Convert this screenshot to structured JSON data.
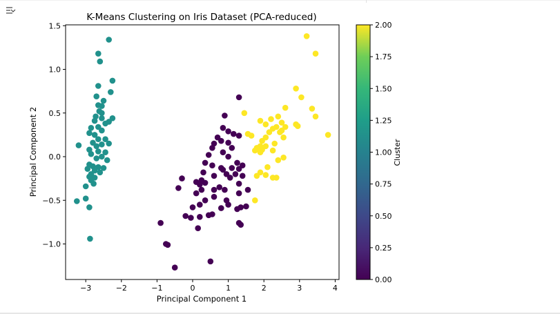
{
  "cell": {
    "output_icon": "output-collapse-icon"
  },
  "chart_data": {
    "type": "scatter",
    "title": "K-Means Clustering on Iris Dataset (PCA-reduced)",
    "xlabel": "Principal Component 1",
    "ylabel": "Principal Component 2",
    "xlim": [
      -3.45,
      4.1
    ],
    "ylim": [
      -1.4,
      1.5
    ],
    "x_ticks": [
      -3,
      -2,
      -1,
      0,
      1,
      2,
      3,
      4
    ],
    "x_tick_labels": [
      "−3",
      "−2",
      "−1",
      "0",
      "1",
      "2",
      "3",
      "4"
    ],
    "y_ticks": [
      -1.0,
      -0.5,
      0.0,
      0.5,
      1.0,
      1.5
    ],
    "y_tick_labels": [
      "−1.0",
      "−0.5",
      "0.0",
      "0.5",
      "1.0",
      "1.5"
    ],
    "grid": false,
    "colormap": "viridis",
    "colors": {
      "cluster_0": "#440154",
      "cluster_1": "#21918c",
      "cluster_2": "#fde725"
    },
    "colorbar": {
      "label": "Cluster",
      "range": [
        0.0,
        2.0
      ],
      "ticks": [
        0.0,
        0.25,
        0.5,
        0.75,
        1.0,
        1.25,
        1.5,
        1.75,
        2.0
      ],
      "tick_labels": [
        "0.00",
        "0.25",
        "0.50",
        "0.75",
        "1.00",
        "1.25",
        "1.50",
        "1.75",
        "2.00"
      ]
    },
    "series": [
      {
        "cluster": 1,
        "color": "#21918c",
        "points": [
          [
            -2.35,
            1.34
          ],
          [
            -2.65,
            1.18
          ],
          [
            -2.6,
            1.09
          ],
          [
            -2.25,
            0.87
          ],
          [
            -2.65,
            0.81
          ],
          [
            -2.3,
            0.74
          ],
          [
            -2.7,
            0.69
          ],
          [
            -2.5,
            0.64
          ],
          [
            -2.65,
            0.59
          ],
          [
            -2.55,
            0.58
          ],
          [
            -2.62,
            0.52
          ],
          [
            -2.55,
            0.5
          ],
          [
            -2.72,
            0.46
          ],
          [
            -2.55,
            0.44
          ],
          [
            -2.25,
            0.44
          ],
          [
            -2.75,
            0.41
          ],
          [
            -2.35,
            0.4
          ],
          [
            -2.45,
            0.38
          ],
          [
            -2.85,
            0.33
          ],
          [
            -2.65,
            0.34
          ],
          [
            -2.55,
            0.3
          ],
          [
            -2.9,
            0.27
          ],
          [
            -2.75,
            0.25
          ],
          [
            -2.65,
            0.2
          ],
          [
            -2.45,
            0.2
          ],
          [
            -2.8,
            0.16
          ],
          [
            -2.55,
            0.14
          ],
          [
            -2.35,
            0.15
          ],
          [
            -2.7,
            0.12
          ],
          [
            -3.2,
            0.13
          ],
          [
            -2.9,
            0.08
          ],
          [
            -2.65,
            0.06
          ],
          [
            -2.45,
            0.05
          ],
          [
            -2.85,
            0.03
          ],
          [
            -2.55,
            0.0
          ],
          [
            -2.7,
            -0.02
          ],
          [
            -2.4,
            -0.04
          ],
          [
            -2.9,
            -0.09
          ],
          [
            -2.8,
            -0.11
          ],
          [
            -2.65,
            -0.12
          ],
          [
            -2.5,
            -0.13
          ],
          [
            -2.95,
            -0.14
          ],
          [
            -2.75,
            -0.16
          ],
          [
            -2.6,
            -0.18
          ],
          [
            -2.85,
            -0.2
          ],
          [
            -2.9,
            -0.23
          ],
          [
            -2.75,
            -0.24
          ],
          [
            -2.85,
            -0.27
          ],
          [
            -2.78,
            -0.31
          ],
          [
            -3.0,
            -0.34
          ],
          [
            -3.0,
            -0.48
          ],
          [
            -3.25,
            -0.51
          ],
          [
            -2.9,
            -0.58
          ],
          [
            -2.88,
            -0.94
          ]
        ]
      },
      {
        "cluster": 0,
        "color": "#440154",
        "points": [
          [
            1.3,
            0.68
          ],
          [
            0.9,
            0.47
          ],
          [
            0.85,
            0.33
          ],
          [
            1.0,
            0.29
          ],
          [
            1.15,
            0.26
          ],
          [
            0.7,
            0.22
          ],
          [
            1.3,
            0.24
          ],
          [
            0.8,
            0.18
          ],
          [
            1.0,
            0.16
          ],
          [
            0.6,
            0.15
          ],
          [
            0.55,
            0.1
          ],
          [
            1.1,
            0.1
          ],
          [
            0.85,
            0.05
          ],
          [
            0.45,
            0.02
          ],
          [
            1.0,
            0.0
          ],
          [
            0.35,
            -0.07
          ],
          [
            1.25,
            -0.07
          ],
          [
            0.55,
            -0.1
          ],
          [
            1.4,
            -0.1
          ],
          [
            0.8,
            -0.13
          ],
          [
            1.1,
            -0.13
          ],
          [
            1.3,
            -0.14
          ],
          [
            0.85,
            -0.15
          ],
          [
            0.3,
            -0.18
          ],
          [
            0.95,
            -0.2
          ],
          [
            1.2,
            -0.2
          ],
          [
            0.6,
            -0.22
          ],
          [
            1.4,
            -0.22
          ],
          [
            1.05,
            -0.24
          ],
          [
            -0.3,
            -0.25
          ],
          [
            0.25,
            -0.27
          ],
          [
            0.1,
            -0.29
          ],
          [
            0.35,
            -0.3
          ],
          [
            1.3,
            -0.31
          ],
          [
            0.2,
            -0.32
          ],
          [
            0.75,
            -0.35
          ],
          [
            -0.4,
            -0.36
          ],
          [
            0.25,
            -0.38
          ],
          [
            0.9,
            -0.38
          ],
          [
            0.6,
            -0.38
          ],
          [
            1.55,
            -0.38
          ],
          [
            0.1,
            -0.42
          ],
          [
            1.3,
            -0.42
          ],
          [
            0.6,
            -0.46
          ],
          [
            0.95,
            -0.5
          ],
          [
            0.35,
            -0.5
          ],
          [
            1.0,
            -0.55
          ],
          [
            0.2,
            -0.55
          ],
          [
            1.5,
            -0.57
          ],
          [
            1.35,
            -0.58
          ],
          [
            0.0,
            -0.58
          ],
          [
            1.25,
            -0.6
          ],
          [
            0.8,
            -0.59
          ],
          [
            -0.2,
            -0.68
          ],
          [
            -0.05,
            -0.7
          ],
          [
            0.2,
            -0.69
          ],
          [
            0.45,
            -0.67
          ],
          [
            0.55,
            -0.66
          ],
          [
            1.3,
            -0.76
          ],
          [
            1.35,
            -0.78
          ],
          [
            -0.9,
            -0.76
          ],
          [
            0.15,
            -0.82
          ],
          [
            -0.75,
            -1.0
          ],
          [
            -0.7,
            -1.01
          ],
          [
            0.5,
            -1.2
          ],
          [
            -0.5,
            -1.27
          ]
        ]
      },
      {
        "cluster": 2,
        "color": "#fde725",
        "points": [
          [
            3.2,
            1.38
          ],
          [
            3.45,
            1.18
          ],
          [
            2.9,
            0.78
          ],
          [
            3.05,
            0.68
          ],
          [
            2.6,
            0.56
          ],
          [
            3.35,
            0.55
          ],
          [
            1.45,
            0.5
          ],
          [
            2.4,
            0.46
          ],
          [
            3.45,
            0.46
          ],
          [
            2.2,
            0.43
          ],
          [
            1.9,
            0.41
          ],
          [
            2.5,
            0.39
          ],
          [
            2.05,
            0.37
          ],
          [
            2.9,
            0.37
          ],
          [
            2.95,
            0.35
          ],
          [
            2.6,
            0.34
          ],
          [
            2.35,
            0.34
          ],
          [
            2.25,
            0.32
          ],
          [
            2.5,
            0.3
          ],
          [
            2.15,
            0.28
          ],
          [
            2.45,
            0.28
          ],
          [
            1.55,
            0.26
          ],
          [
            1.65,
            0.24
          ],
          [
            2.05,
            0.22
          ],
          [
            2.55,
            0.22
          ],
          [
            1.95,
            0.18
          ],
          [
            3.8,
            0.25
          ],
          [
            2.3,
            0.15
          ],
          [
            1.9,
            0.12
          ],
          [
            2.05,
            0.12
          ],
          [
            1.8,
            0.1
          ],
          [
            1.95,
            0.08
          ],
          [
            1.75,
            0.07
          ],
          [
            2.25,
            0.07
          ],
          [
            1.9,
            0.05
          ],
          [
            2.55,
            -0.01
          ],
          [
            2.4,
            -0.04
          ],
          [
            2.1,
            -0.12
          ],
          [
            1.9,
            -0.18
          ],
          [
            2.05,
            -0.21
          ],
          [
            1.8,
            -0.22
          ],
          [
            2.25,
            -0.24
          ],
          [
            2.35,
            -0.24
          ],
          [
            1.75,
            -0.5
          ]
        ]
      }
    ]
  }
}
